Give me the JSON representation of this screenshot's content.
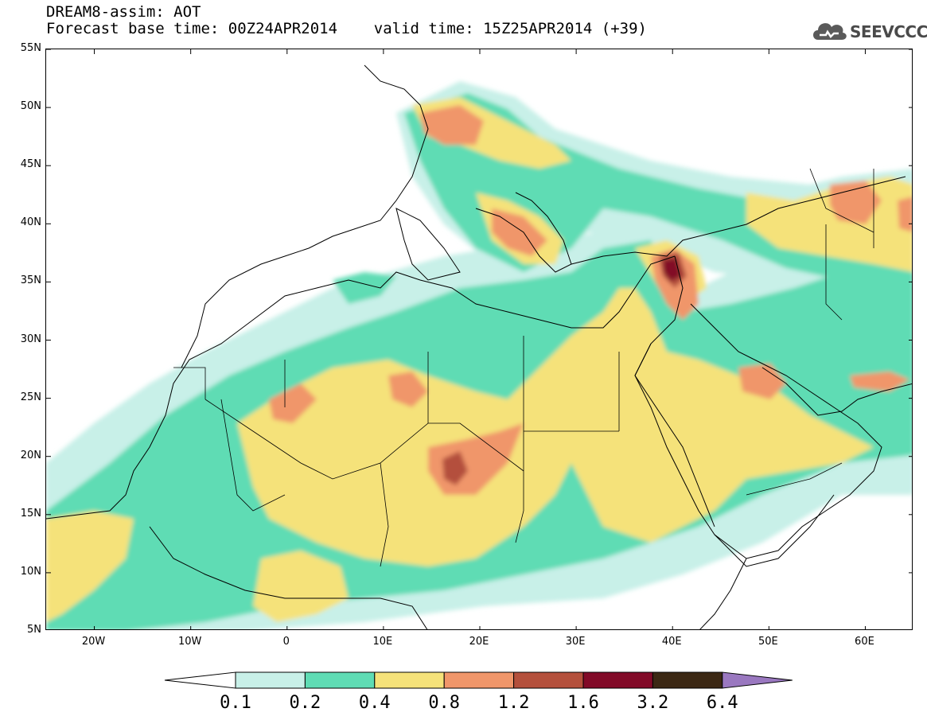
{
  "header": {
    "title_line1": "DREAM8-assim: AOT",
    "title_line2": "Forecast base time: 00Z24APR2014    valid time: 15Z25APR2014 (+39)"
  },
  "logo": {
    "text": "SEEVCCC",
    "icon": "cloud-logo-icon"
  },
  "map": {
    "projection": "lat-lon",
    "lat_range": [
      5,
      55
    ],
    "lon_range": [
      -25,
      65
    ],
    "lat_ticks": [
      {
        "value": 55,
        "label": "55N"
      },
      {
        "value": 50,
        "label": "50N"
      },
      {
        "value": 45,
        "label": "45N"
      },
      {
        "value": 40,
        "label": "40N"
      },
      {
        "value": 35,
        "label": "35N"
      },
      {
        "value": 30,
        "label": "30N"
      },
      {
        "value": 25,
        "label": "25N"
      },
      {
        "value": 20,
        "label": "20N"
      },
      {
        "value": 15,
        "label": "15N"
      },
      {
        "value": 10,
        "label": "10N"
      },
      {
        "value": 5,
        "label": "5N"
      }
    ],
    "lon_ticks": [
      {
        "value": -20,
        "label": "20W"
      },
      {
        "value": -10,
        "label": "10W"
      },
      {
        "value": 0,
        "label": "0"
      },
      {
        "value": 10,
        "label": "10E"
      },
      {
        "value": 20,
        "label": "20E"
      },
      {
        "value": 30,
        "label": "30E"
      },
      {
        "value": 40,
        "label": "40E"
      },
      {
        "value": 50,
        "label": "50E"
      },
      {
        "value": 60,
        "label": "60E"
      }
    ],
    "field": "Aerosol Optical Thickness (AOT)",
    "maxima": [
      {
        "lon": 39.5,
        "lat": 36.0,
        "level": "3.2"
      },
      {
        "lon": 17.5,
        "lat": 19.2,
        "level": "1.6"
      },
      {
        "lon": 20.5,
        "lat": 37.5,
        "level": "1.2"
      },
      {
        "lon": 57.5,
        "lat": 41.5,
        "level": "1.2"
      }
    ]
  },
  "colorbar": {
    "levels": [
      "0.1",
      "0.2",
      "0.4",
      "0.8",
      "1.2",
      "1.6",
      "3.2",
      "6.4"
    ],
    "colors": {
      "below": "#ffffff",
      "bins": [
        "#c8f0e8",
        "#5fdcb4",
        "#f5e27a",
        "#f0966a",
        "#b4503c",
        "#820a28",
        "#3c2814"
      ],
      "above": "#9a78c0"
    }
  }
}
